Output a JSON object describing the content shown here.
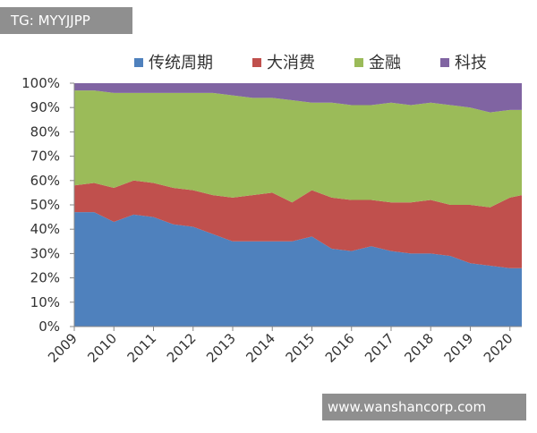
{
  "watermark_top": "TG: MYYJJPP",
  "watermark_bottom": "www.wanshancorp.com",
  "chart_data": {
    "type": "stacked_area",
    "x": [
      2009,
      2009.5,
      2010,
      2010.5,
      2011,
      2011.5,
      2012,
      2012.5,
      2013,
      2013.5,
      2014,
      2014.5,
      2015,
      2015.5,
      2016,
      2016.5,
      2017,
      2017.5,
      2018,
      2018.5,
      2019,
      2019.5,
      2020,
      2020.3
    ],
    "series": [
      {
        "name": "传统周期",
        "color": "#4f81bd",
        "values": [
          47,
          47,
          43,
          46,
          45,
          42,
          41,
          38,
          35,
          35,
          35,
          35,
          37,
          32,
          31,
          33,
          31,
          30,
          30,
          29,
          26,
          25,
          24,
          24
        ]
      },
      {
        "name": "大消费",
        "color": "#c0504d",
        "values": [
          11,
          12,
          14,
          14,
          14,
          15,
          15,
          16,
          18,
          19,
          20,
          16,
          19,
          21,
          21,
          19,
          20,
          21,
          22,
          21,
          24,
          24,
          29,
          30
        ]
      },
      {
        "name": "金融",
        "color": "#9bbb59",
        "values": [
          39,
          38,
          39,
          36,
          37,
          39,
          40,
          42,
          42,
          40,
          39,
          42,
          36,
          39,
          39,
          39,
          41,
          40,
          40,
          41,
          40,
          39,
          36,
          35
        ]
      },
      {
        "name": "科技",
        "color": "#8064a2",
        "values": [
          3,
          3,
          4,
          4,
          4,
          4,
          4,
          4,
          5,
          6,
          6,
          7,
          8,
          8,
          9,
          9,
          8,
          9,
          8,
          9,
          10,
          12,
          11,
          11
        ]
      }
    ],
    "xlim": [
      2009,
      2020.3
    ],
    "xticks": [
      2009,
      2010,
      2011,
      2012,
      2013,
      2014,
      2015,
      2016,
      2017,
      2018,
      2019,
      2020
    ],
    "ylim": [
      0,
      100
    ],
    "yticks": [
      {
        "value": 0,
        "label": "0%"
      },
      {
        "value": 10,
        "label": "10%"
      },
      {
        "value": 20,
        "label": "20%"
      },
      {
        "value": 30,
        "label": "30%"
      },
      {
        "value": 40,
        "label": "40%"
      },
      {
        "value": 50,
        "label": "50%"
      },
      {
        "value": 60,
        "label": "60%"
      },
      {
        "value": 70,
        "label": "70%"
      },
      {
        "value": 80,
        "label": "80%"
      },
      {
        "value": 90,
        "label": "90%"
      },
      {
        "value": 100,
        "label": "100%"
      }
    ],
    "legend": "top"
  }
}
